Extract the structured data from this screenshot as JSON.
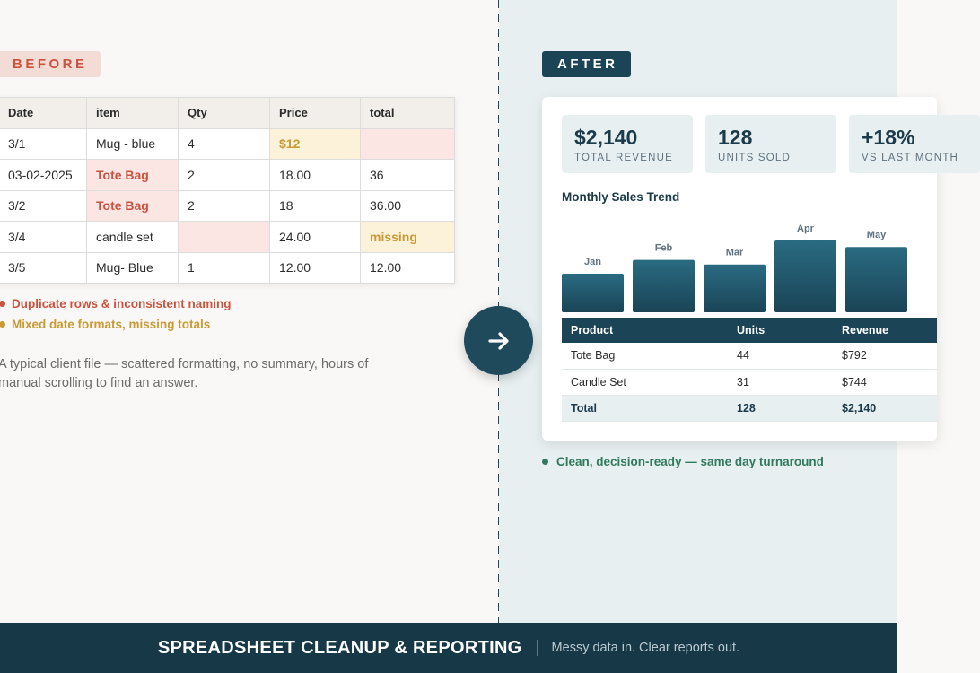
{
  "before": {
    "badge": "BEFORE",
    "table": {
      "headers": [
        "Date",
        "item",
        "Qty",
        "Price",
        "total"
      ],
      "rows": [
        [
          "3/1",
          "Mug - blue",
          "4",
          "$12",
          ""
        ],
        [
          "03-02-2025",
          "Tote Bag",
          "2",
          "18.00",
          "36"
        ],
        [
          "3/2",
          "Tote Bag",
          "2",
          "18",
          "36.00"
        ],
        [
          "3/4",
          "candle set",
          "",
          "24.00",
          "missing"
        ],
        [
          "3/5",
          "Mug- Blue",
          "1",
          "12.00",
          "12.00"
        ]
      ]
    },
    "issues": [
      "Duplicate rows & inconsistent naming",
      "Mixed date formats, missing totals"
    ],
    "description": "A typical client file — scattered formatting, no summary, hours of manual scrolling to find an answer."
  },
  "after": {
    "badge": "AFTER",
    "kpis": [
      {
        "value": "$2,140",
        "label": "TOTAL REVENUE"
      },
      {
        "value": "128",
        "label": "UNITS SOLD"
      },
      {
        "value": "+18%",
        "label": "VS LAST MONTH"
      }
    ],
    "chart_title": "Monthly Sales Trend",
    "chart_data": {
      "type": "bar",
      "categories": [
        "Jan",
        "Feb",
        "Mar",
        "Apr",
        "May"
      ],
      "values": [
        42,
        57,
        52,
        78,
        71
      ],
      "title": "Monthly Sales Trend"
    },
    "table": {
      "headers": [
        "Product",
        "Units",
        "Revenue"
      ],
      "rows": [
        [
          "Tote Bag",
          "44",
          "$792"
        ],
        [
          "Candle Set",
          "31",
          "$744"
        ]
      ],
      "total": [
        "Total",
        "128",
        "$2,140"
      ]
    },
    "success": "Clean, decision-ready — same day turnaround"
  },
  "footer": {
    "title": "SPREADSHEET CLEANUP & REPORTING",
    "subtitle": "Messy data in. Clear reports out."
  },
  "colors": {
    "accent": "#1b4456",
    "error": "#c9533e",
    "warning": "#c99a35",
    "success": "#2f7a5d"
  }
}
